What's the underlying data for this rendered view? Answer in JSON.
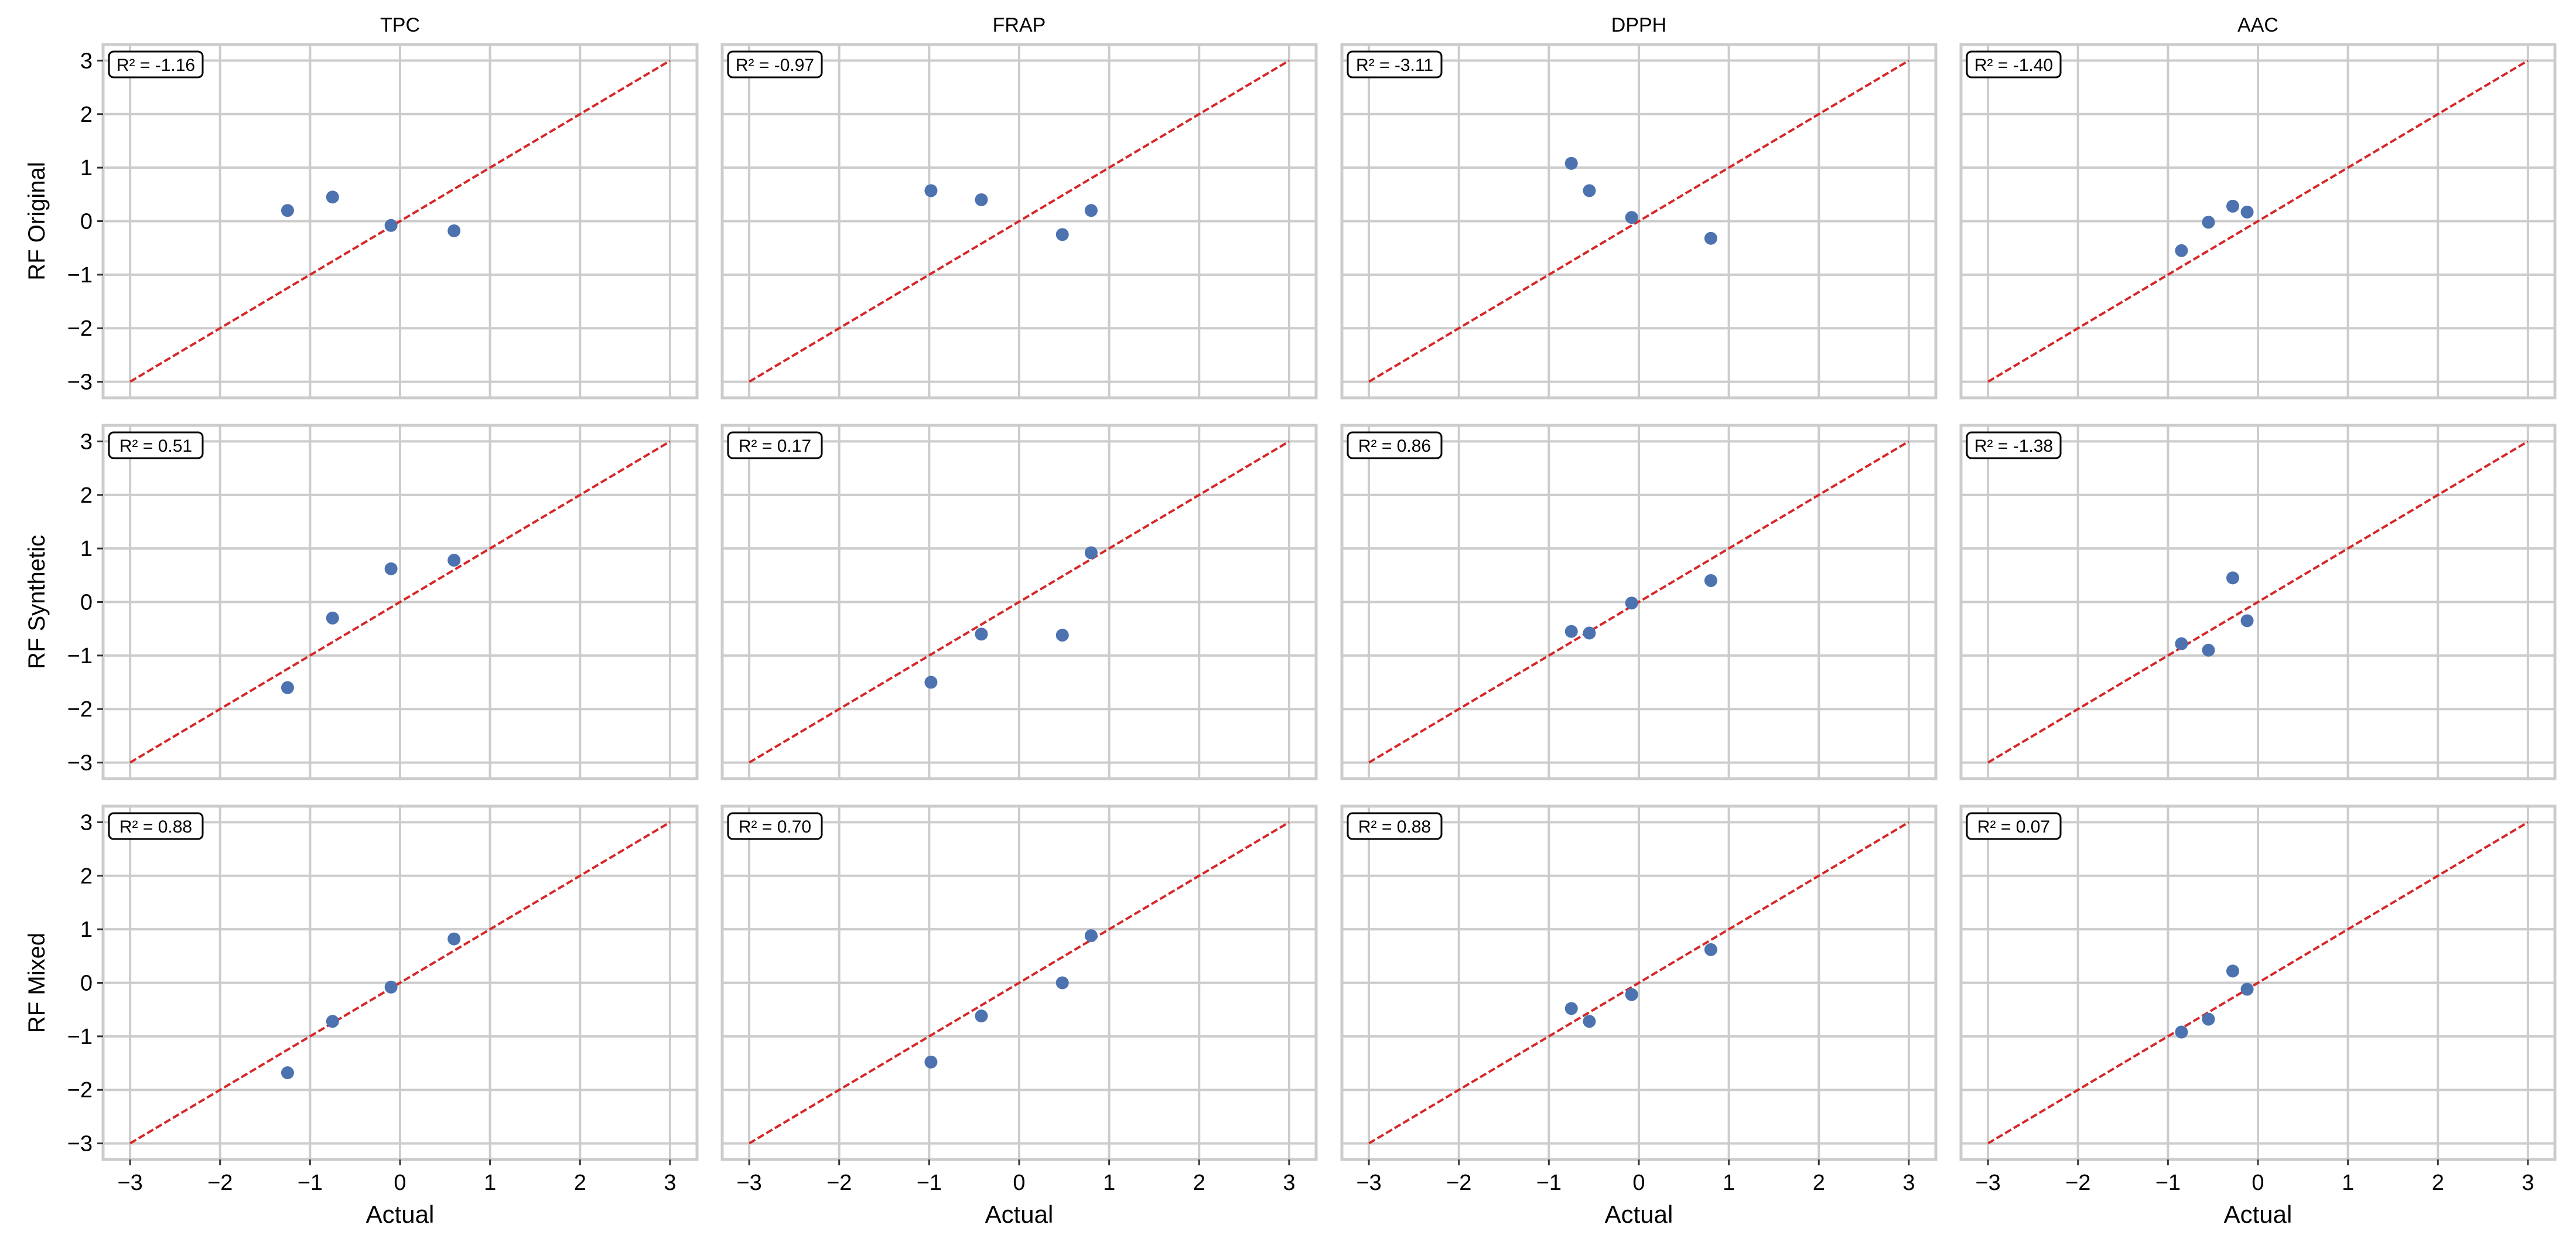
{
  "figure": {
    "columns": [
      "TPC",
      "FRAP",
      "DPPH",
      "AAC"
    ],
    "rows": [
      "RF Original",
      "RF Synthetic",
      "RF Mixed"
    ],
    "xlabel": "Actual",
    "ticks": [
      "−3",
      "−2",
      "−1",
      "0",
      "1",
      "2",
      "3"
    ]
  },
  "colors": {
    "point": "#4c72b0",
    "reference_line": "#d62728",
    "grid": "#cccccc",
    "frame": "#cccccc",
    "badge_border": "#000000"
  },
  "chart_data": [
    {
      "type": "scatter",
      "row": "RF Original",
      "column": "TPC",
      "annotation": "R² = -1.16",
      "xlim": [
        -3.3,
        3.3
      ],
      "ylim": [
        -3.3,
        3.3
      ],
      "grid": true,
      "reference_line": [
        [
          -3,
          -3
        ],
        [
          3,
          3
        ]
      ],
      "x": [
        -1.25,
        -0.75,
        -0.1,
        0.6
      ],
      "y": [
        0.2,
        0.45,
        -0.08,
        -0.18
      ]
    },
    {
      "type": "scatter",
      "row": "RF Original",
      "column": "FRAP",
      "annotation": "R² = -0.97",
      "xlim": [
        -3.3,
        3.3
      ],
      "ylim": [
        -3.3,
        3.3
      ],
      "grid": true,
      "reference_line": [
        [
          -3,
          -3
        ],
        [
          3,
          3
        ]
      ],
      "x": [
        -0.98,
        -0.42,
        0.48,
        0.8
      ],
      "y": [
        0.57,
        0.4,
        -0.25,
        0.2
      ]
    },
    {
      "type": "scatter",
      "row": "RF Original",
      "column": "DPPH",
      "annotation": "R² = -3.11",
      "xlim": [
        -3.3,
        3.3
      ],
      "ylim": [
        -3.3,
        3.3
      ],
      "grid": true,
      "reference_line": [
        [
          -3,
          -3
        ],
        [
          3,
          3
        ]
      ],
      "x": [
        -0.75,
        -0.55,
        -0.08,
        0.8
      ],
      "y": [
        1.08,
        0.57,
        0.07,
        -0.32
      ]
    },
    {
      "type": "scatter",
      "row": "RF Original",
      "column": "AAC",
      "annotation": "R² = -1.40",
      "xlim": [
        -3.3,
        3.3
      ],
      "ylim": [
        -3.3,
        3.3
      ],
      "grid": true,
      "reference_line": [
        [
          -3,
          -3
        ],
        [
          3,
          3
        ]
      ],
      "x": [
        -0.85,
        -0.55,
        -0.28,
        -0.12
      ],
      "y": [
        -0.55,
        -0.02,
        0.28,
        0.17
      ]
    },
    {
      "type": "scatter",
      "row": "RF Synthetic",
      "column": "TPC",
      "annotation": "R² = 0.51",
      "xlim": [
        -3.3,
        3.3
      ],
      "ylim": [
        -3.3,
        3.3
      ],
      "grid": true,
      "reference_line": [
        [
          -3,
          -3
        ],
        [
          3,
          3
        ]
      ],
      "x": [
        -1.25,
        -0.75,
        -0.1,
        0.6
      ],
      "y": [
        -1.6,
        -0.3,
        0.62,
        0.78
      ]
    },
    {
      "type": "scatter",
      "row": "RF Synthetic",
      "column": "FRAP",
      "annotation": "R² = 0.17",
      "xlim": [
        -3.3,
        3.3
      ],
      "ylim": [
        -3.3,
        3.3
      ],
      "grid": true,
      "reference_line": [
        [
          -3,
          -3
        ],
        [
          3,
          3
        ]
      ],
      "x": [
        -0.98,
        -0.42,
        0.48,
        0.8
      ],
      "y": [
        -1.5,
        -0.6,
        -0.62,
        0.92
      ]
    },
    {
      "type": "scatter",
      "row": "RF Synthetic",
      "column": "DPPH",
      "annotation": "R² = 0.86",
      "xlim": [
        -3.3,
        3.3
      ],
      "ylim": [
        -3.3,
        3.3
      ],
      "grid": true,
      "reference_line": [
        [
          -3,
          -3
        ],
        [
          3,
          3
        ]
      ],
      "x": [
        -0.75,
        -0.55,
        -0.08,
        0.8
      ],
      "y": [
        -0.55,
        -0.58,
        -0.02,
        0.4
      ]
    },
    {
      "type": "scatter",
      "row": "RF Synthetic",
      "column": "AAC",
      "annotation": "R² = -1.38",
      "xlim": [
        -3.3,
        3.3
      ],
      "ylim": [
        -3.3,
        3.3
      ],
      "grid": true,
      "reference_line": [
        [
          -3,
          -3
        ],
        [
          3,
          3
        ]
      ],
      "x": [
        -0.85,
        -0.55,
        -0.28,
        -0.12
      ],
      "y": [
        -0.78,
        -0.9,
        0.45,
        -0.35
      ]
    },
    {
      "type": "scatter",
      "row": "RF Mixed",
      "column": "TPC",
      "annotation": "R² = 0.88",
      "xlim": [
        -3.3,
        3.3
      ],
      "ylim": [
        -3.3,
        3.3
      ],
      "grid": true,
      "reference_line": [
        [
          -3,
          -3
        ],
        [
          3,
          3
        ]
      ],
      "x": [
        -1.25,
        -0.75,
        -0.1,
        0.6
      ],
      "y": [
        -1.68,
        -0.72,
        -0.08,
        0.82
      ]
    },
    {
      "type": "scatter",
      "row": "RF Mixed",
      "column": "FRAP",
      "annotation": "R² = 0.70",
      "xlim": [
        -3.3,
        3.3
      ],
      "ylim": [
        -3.3,
        3.3
      ],
      "grid": true,
      "reference_line": [
        [
          -3,
          -3
        ],
        [
          3,
          3
        ]
      ],
      "x": [
        -0.98,
        -0.42,
        0.48,
        0.8
      ],
      "y": [
        -1.48,
        -0.62,
        0.0,
        0.88
      ]
    },
    {
      "type": "scatter",
      "row": "RF Mixed",
      "column": "DPPH",
      "annotation": "R² = 0.88",
      "xlim": [
        -3.3,
        3.3
      ],
      "ylim": [
        -3.3,
        3.3
      ],
      "grid": true,
      "reference_line": [
        [
          -3,
          -3
        ],
        [
          3,
          3
        ]
      ],
      "x": [
        -0.75,
        -0.55,
        -0.08,
        0.8
      ],
      "y": [
        -0.48,
        -0.72,
        -0.22,
        0.62
      ]
    },
    {
      "type": "scatter",
      "row": "RF Mixed",
      "column": "AAC",
      "annotation": "R² = 0.07",
      "xlim": [
        -3.3,
        3.3
      ],
      "ylim": [
        -3.3,
        3.3
      ],
      "grid": true,
      "reference_line": [
        [
          -3,
          -3
        ],
        [
          3,
          3
        ]
      ],
      "x": [
        -0.85,
        -0.55,
        -0.28,
        -0.12
      ],
      "y": [
        -0.92,
        -0.68,
        0.22,
        -0.12
      ]
    }
  ]
}
